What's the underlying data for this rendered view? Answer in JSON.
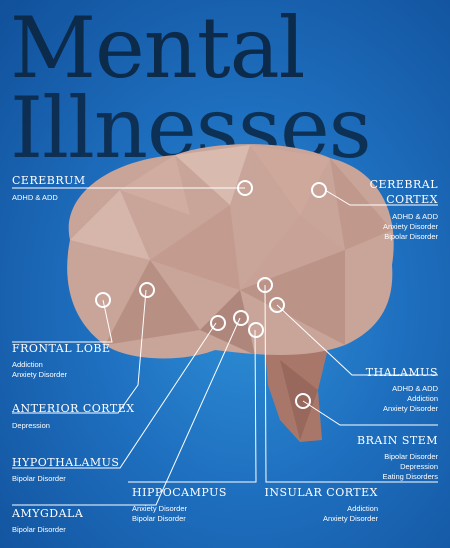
{
  "title": {
    "line1": "Mental",
    "line2": "Illnesses"
  },
  "colors": {
    "background": "#1e6fbf",
    "title": "#0c2a4a",
    "brain": "#c9a499",
    "brainstem": "#a9776a",
    "lines": "#ffffff"
  },
  "labels": {
    "cerebrum": {
      "name": "CEREBRUM",
      "conditions": [
        "ADHD & ADD"
      ]
    },
    "cerebral_cortex": {
      "name_line1": "CEREBRAL",
      "name_line2": "CORTEX",
      "conditions": [
        "ADHD & ADD",
        "Anxiety Disorder",
        "Bipolar Disorder"
      ]
    },
    "frontal_lobe": {
      "name": "FRONTAL LOBE",
      "conditions": [
        "Addiction",
        "Anxiety Disorder"
      ]
    },
    "thalamus": {
      "name": "THALAMUS",
      "conditions": [
        "ADHD & ADD",
        "Addiction",
        "Anxiety Disorder"
      ]
    },
    "anterior_cortex": {
      "name": "ANTERIOR CORTEX",
      "conditions": [
        "Depression"
      ]
    },
    "brain_stem": {
      "name": "BRAIN STEM",
      "conditions": [
        "Bipolar Disorder",
        "Depression",
        "Eating Disorders"
      ]
    },
    "hypothalamus": {
      "name": "HYPOTHALAMUS",
      "conditions": [
        "Bipolar Disorder"
      ]
    },
    "hippocampus": {
      "name": "HIPPOCAMPUS",
      "conditions": [
        "Anxiety Disorder",
        "Bipolar Disorder"
      ]
    },
    "insular_cortex": {
      "name": "INSULAR CORTEX",
      "conditions": [
        "Addiction",
        "Anxiety Disorder"
      ]
    },
    "amygdala": {
      "name": "AMYGDALA",
      "conditions": [
        "Bipolar Disorder"
      ]
    }
  }
}
